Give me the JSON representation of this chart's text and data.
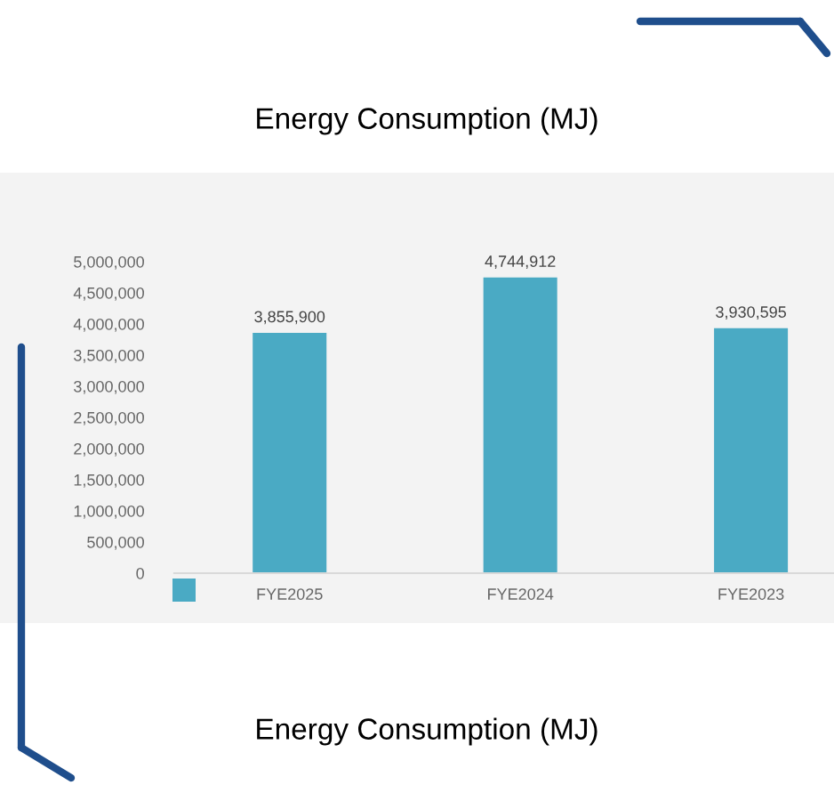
{
  "chart_data": {
    "type": "bar",
    "title": "Energy Consumption (MJ)",
    "categories": [
      "FYE2025",
      "FYE2024",
      "FYE2023"
    ],
    "series": [
      {
        "color": "#4aaac4",
        "values": [
          3855900,
          4744912,
          3930595
        ]
      }
    ],
    "ylim": [
      0,
      5000000
    ],
    "yticks": [
      {
        "value": 0,
        "label": "0"
      },
      {
        "value": 500000,
        "label": "500,000"
      },
      {
        "value": 1000000,
        "label": "1,000,000"
      },
      {
        "value": 1500000,
        "label": "1,500,000"
      },
      {
        "value": 2000000,
        "label": "2,000,000"
      },
      {
        "value": 2500000,
        "label": "2,500,000"
      },
      {
        "value": 3000000,
        "label": "3,000,000"
      },
      {
        "value": 3500000,
        "label": "3,500,000"
      },
      {
        "value": 4000000,
        "label": "4,000,000"
      },
      {
        "value": 4500000,
        "label": "4,500,000"
      },
      {
        "value": 5000000,
        "label": "5,000,000"
      }
    ],
    "value_labels": [
      [
        "3,855,900",
        "4,744,912",
        "3,930,595"
      ]
    ],
    "annotations": [
      "Energy Consumption (MJ)"
    ],
    "grid": false
  }
}
